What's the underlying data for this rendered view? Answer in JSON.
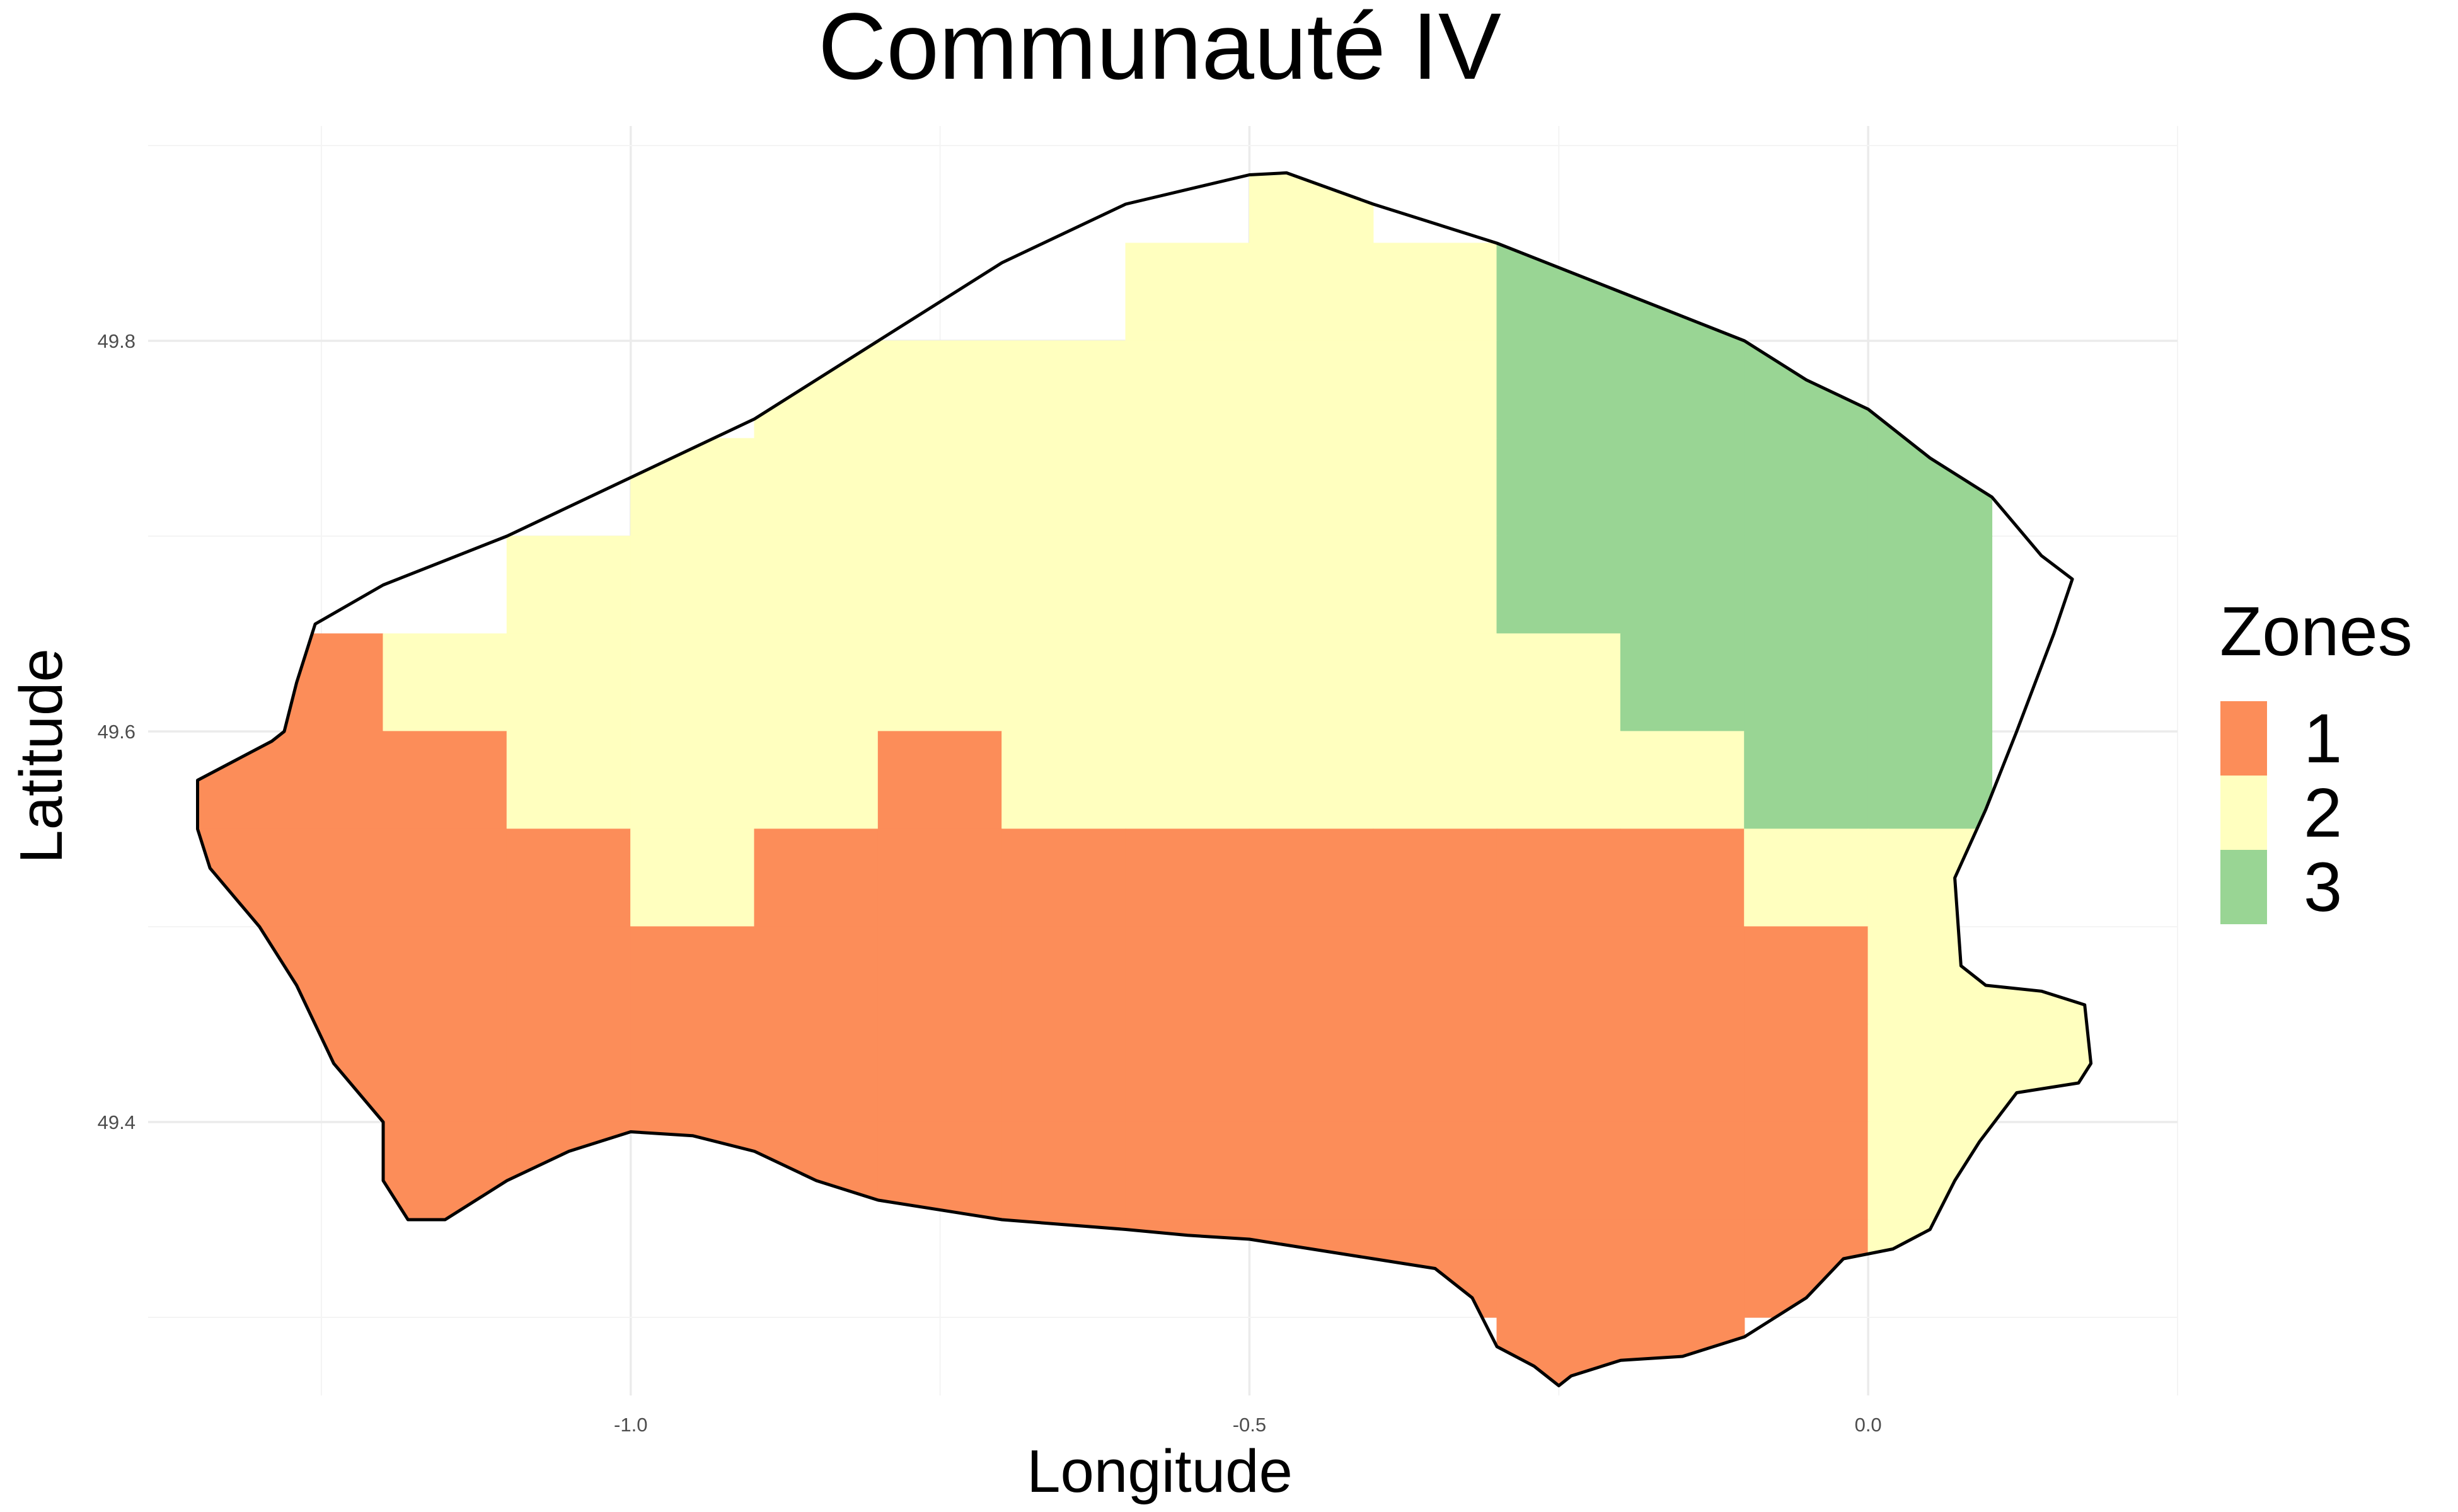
{
  "chart_data": {
    "type": "map",
    "title": "Communauté IV",
    "xlabel": "Longitude",
    "ylabel": "Latitude",
    "x_ticks": [
      -1.0,
      -0.5,
      0.0
    ],
    "x_tick_labels": [
      "-1.0",
      "-0.5",
      "0.0"
    ],
    "y_ticks": [
      49.4,
      49.6,
      49.8
    ],
    "y_tick_labels": [
      "49.4",
      "49.6",
      "49.8"
    ],
    "xlim": [
      -1.39,
      0.25
    ],
    "ylim": [
      49.26,
      49.91
    ],
    "grid": true,
    "legend": {
      "title": "Zones",
      "position": "right",
      "entries": [
        {
          "label": "1",
          "zone": 1,
          "color": "#FC8D59"
        },
        {
          "label": "2",
          "zone": 2,
          "color": "#FFFFBF"
        },
        {
          "label": "3",
          "zone": 3,
          "color": "#99D594"
        }
      ]
    },
    "cell_width_deg": 0.1,
    "cell_height_deg": 0.05,
    "cells": [
      {
        "x": -0.45,
        "y": 49.875,
        "zone": 2
      },
      {
        "x": -0.55,
        "y": 49.825,
        "zone": 2
      },
      {
        "x": -0.45,
        "y": 49.825,
        "zone": 2
      },
      {
        "x": -0.35,
        "y": 49.825,
        "zone": 2
      },
      {
        "x": -0.25,
        "y": 49.825,
        "zone": 3
      },
      {
        "x": -0.15,
        "y": 49.825,
        "zone": 3
      },
      {
        "x": -0.85,
        "y": 49.775,
        "zone": 2
      },
      {
        "x": -0.75,
        "y": 49.775,
        "zone": 2
      },
      {
        "x": -0.65,
        "y": 49.775,
        "zone": 2
      },
      {
        "x": -0.55,
        "y": 49.775,
        "zone": 2
      },
      {
        "x": -0.45,
        "y": 49.775,
        "zone": 2
      },
      {
        "x": -0.35,
        "y": 49.775,
        "zone": 2
      },
      {
        "x": -0.25,
        "y": 49.775,
        "zone": 3
      },
      {
        "x": -0.15,
        "y": 49.775,
        "zone": 3
      },
      {
        "x": -0.05,
        "y": 49.775,
        "zone": 3
      },
      {
        "x": 0.05,
        "y": 49.775,
        "zone": 3
      },
      {
        "x": -0.95,
        "y": 49.725,
        "zone": 2
      },
      {
        "x": -0.85,
        "y": 49.725,
        "zone": 2
      },
      {
        "x": -0.75,
        "y": 49.725,
        "zone": 2
      },
      {
        "x": -0.65,
        "y": 49.725,
        "zone": 2
      },
      {
        "x": -0.55,
        "y": 49.725,
        "zone": 2
      },
      {
        "x": -0.45,
        "y": 49.725,
        "zone": 2
      },
      {
        "x": -0.35,
        "y": 49.725,
        "zone": 2
      },
      {
        "x": -0.25,
        "y": 49.725,
        "zone": 3
      },
      {
        "x": -0.15,
        "y": 49.725,
        "zone": 3
      },
      {
        "x": -0.05,
        "y": 49.725,
        "zone": 3
      },
      {
        "x": 0.05,
        "y": 49.725,
        "zone": 3
      },
      {
        "x": -1.05,
        "y": 49.675,
        "zone": 2
      },
      {
        "x": -0.95,
        "y": 49.675,
        "zone": 2
      },
      {
        "x": -0.85,
        "y": 49.675,
        "zone": 2
      },
      {
        "x": -0.75,
        "y": 49.675,
        "zone": 2
      },
      {
        "x": -0.65,
        "y": 49.675,
        "zone": 2
      },
      {
        "x": -0.55,
        "y": 49.675,
        "zone": 2
      },
      {
        "x": -0.45,
        "y": 49.675,
        "zone": 2
      },
      {
        "x": -0.35,
        "y": 49.675,
        "zone": 2
      },
      {
        "x": -0.25,
        "y": 49.675,
        "zone": 3
      },
      {
        "x": -0.15,
        "y": 49.675,
        "zone": 3
      },
      {
        "x": -0.05,
        "y": 49.675,
        "zone": 3
      },
      {
        "x": 0.05,
        "y": 49.675,
        "zone": 3
      },
      {
        "x": -1.25,
        "y": 49.625,
        "zone": 1
      },
      {
        "x": -1.15,
        "y": 49.625,
        "zone": 2
      },
      {
        "x": -1.05,
        "y": 49.625,
        "zone": 2
      },
      {
        "x": -0.95,
        "y": 49.625,
        "zone": 2
      },
      {
        "x": -0.85,
        "y": 49.625,
        "zone": 2
      },
      {
        "x": -0.75,
        "y": 49.625,
        "zone": 2
      },
      {
        "x": -0.65,
        "y": 49.625,
        "zone": 2
      },
      {
        "x": -0.55,
        "y": 49.625,
        "zone": 2
      },
      {
        "x": -0.45,
        "y": 49.625,
        "zone": 2
      },
      {
        "x": -0.35,
        "y": 49.625,
        "zone": 2
      },
      {
        "x": -0.25,
        "y": 49.625,
        "zone": 2
      },
      {
        "x": -0.15,
        "y": 49.625,
        "zone": 3
      },
      {
        "x": -0.05,
        "y": 49.625,
        "zone": 3
      },
      {
        "x": 0.05,
        "y": 49.625,
        "zone": 3
      },
      {
        "x": -1.35,
        "y": 49.575,
        "zone": 1
      },
      {
        "x": -1.25,
        "y": 49.575,
        "zone": 1
      },
      {
        "x": -1.15,
        "y": 49.575,
        "zone": 1
      },
      {
        "x": -1.05,
        "y": 49.575,
        "zone": 2
      },
      {
        "x": -0.95,
        "y": 49.575,
        "zone": 2
      },
      {
        "x": -0.85,
        "y": 49.575,
        "zone": 2
      },
      {
        "x": -0.75,
        "y": 49.575,
        "zone": 1
      },
      {
        "x": -0.65,
        "y": 49.575,
        "zone": 2
      },
      {
        "x": -0.55,
        "y": 49.575,
        "zone": 2
      },
      {
        "x": -0.45,
        "y": 49.575,
        "zone": 2
      },
      {
        "x": -0.35,
        "y": 49.575,
        "zone": 2
      },
      {
        "x": -0.25,
        "y": 49.575,
        "zone": 2
      },
      {
        "x": -0.15,
        "y": 49.575,
        "zone": 2
      },
      {
        "x": -0.05,
        "y": 49.575,
        "zone": 3
      },
      {
        "x": 0.05,
        "y": 49.575,
        "zone": 3
      },
      {
        "x": -1.35,
        "y": 49.525,
        "zone": 1
      },
      {
        "x": -1.25,
        "y": 49.525,
        "zone": 1
      },
      {
        "x": -1.15,
        "y": 49.525,
        "zone": 1
      },
      {
        "x": -1.05,
        "y": 49.525,
        "zone": 1
      },
      {
        "x": -0.95,
        "y": 49.525,
        "zone": 2
      },
      {
        "x": -0.85,
        "y": 49.525,
        "zone": 1
      },
      {
        "x": -0.75,
        "y": 49.525,
        "zone": 1
      },
      {
        "x": -0.65,
        "y": 49.525,
        "zone": 1
      },
      {
        "x": -0.55,
        "y": 49.525,
        "zone": 1
      },
      {
        "x": -0.45,
        "y": 49.525,
        "zone": 1
      },
      {
        "x": -0.35,
        "y": 49.525,
        "zone": 1
      },
      {
        "x": -0.25,
        "y": 49.525,
        "zone": 1
      },
      {
        "x": -0.15,
        "y": 49.525,
        "zone": 1
      },
      {
        "x": -0.05,
        "y": 49.525,
        "zone": 2
      },
      {
        "x": 0.05,
        "y": 49.525,
        "zone": 2
      },
      {
        "x": -1.25,
        "y": 49.475,
        "zone": 1
      },
      {
        "x": -1.15,
        "y": 49.475,
        "zone": 1
      },
      {
        "x": -1.05,
        "y": 49.475,
        "zone": 1
      },
      {
        "x": -0.95,
        "y": 49.475,
        "zone": 1
      },
      {
        "x": -0.85,
        "y": 49.475,
        "zone": 1
      },
      {
        "x": -0.75,
        "y": 49.475,
        "zone": 1
      },
      {
        "x": -0.65,
        "y": 49.475,
        "zone": 1
      },
      {
        "x": -0.55,
        "y": 49.475,
        "zone": 1
      },
      {
        "x": -0.45,
        "y": 49.475,
        "zone": 1
      },
      {
        "x": -0.35,
        "y": 49.475,
        "zone": 1
      },
      {
        "x": -0.25,
        "y": 49.475,
        "zone": 1
      },
      {
        "x": -0.15,
        "y": 49.475,
        "zone": 1
      },
      {
        "x": -0.05,
        "y": 49.475,
        "zone": 1
      },
      {
        "x": 0.05,
        "y": 49.475,
        "zone": 2
      },
      {
        "x": 0.15,
        "y": 49.475,
        "zone": 2
      },
      {
        "x": -1.25,
        "y": 49.425,
        "zone": 1
      },
      {
        "x": -1.15,
        "y": 49.425,
        "zone": 1
      },
      {
        "x": -1.05,
        "y": 49.425,
        "zone": 1
      },
      {
        "x": -0.95,
        "y": 49.425,
        "zone": 1
      },
      {
        "x": -0.85,
        "y": 49.425,
        "zone": 1
      },
      {
        "x": -0.75,
        "y": 49.425,
        "zone": 1
      },
      {
        "x": -0.65,
        "y": 49.425,
        "zone": 1
      },
      {
        "x": -0.55,
        "y": 49.425,
        "zone": 1
      },
      {
        "x": -0.45,
        "y": 49.425,
        "zone": 1
      },
      {
        "x": -0.35,
        "y": 49.425,
        "zone": 1
      },
      {
        "x": -0.25,
        "y": 49.425,
        "zone": 1
      },
      {
        "x": -0.15,
        "y": 49.425,
        "zone": 1
      },
      {
        "x": -0.05,
        "y": 49.425,
        "zone": 1
      },
      {
        "x": 0.05,
        "y": 49.425,
        "zone": 2
      },
      {
        "x": 0.15,
        "y": 49.425,
        "zone": 2
      },
      {
        "x": -1.15,
        "y": 49.375,
        "zone": 1
      },
      {
        "x": -1.05,
        "y": 49.375,
        "zone": 1
      },
      {
        "x": -0.95,
        "y": 49.375,
        "zone": 1
      },
      {
        "x": -0.85,
        "y": 49.375,
        "zone": 1
      },
      {
        "x": -0.75,
        "y": 49.375,
        "zone": 1
      },
      {
        "x": -0.65,
        "y": 49.375,
        "zone": 1
      },
      {
        "x": -0.55,
        "y": 49.375,
        "zone": 1
      },
      {
        "x": -0.45,
        "y": 49.375,
        "zone": 1
      },
      {
        "x": -0.35,
        "y": 49.375,
        "zone": 1
      },
      {
        "x": -0.25,
        "y": 49.375,
        "zone": 1
      },
      {
        "x": -0.15,
        "y": 49.375,
        "zone": 1
      },
      {
        "x": -0.05,
        "y": 49.375,
        "zone": 1
      },
      {
        "x": 0.05,
        "y": 49.375,
        "zone": 2
      },
      {
        "x": -0.75,
        "y": 49.325,
        "zone": 1
      },
      {
        "x": -0.65,
        "y": 49.325,
        "zone": 1
      },
      {
        "x": -0.55,
        "y": 49.325,
        "zone": 1
      },
      {
        "x": -0.45,
        "y": 49.325,
        "zone": 1
      },
      {
        "x": -0.35,
        "y": 49.325,
        "zone": 1
      },
      {
        "x": -0.25,
        "y": 49.325,
        "zone": 1
      },
      {
        "x": -0.15,
        "y": 49.325,
        "zone": 1
      },
      {
        "x": -0.05,
        "y": 49.325,
        "zone": 1
      },
      {
        "x": 0.05,
        "y": 49.325,
        "zone": 2
      },
      {
        "x": -0.25,
        "y": 49.275,
        "zone": 1
      },
      {
        "x": -0.15,
        "y": 49.275,
        "zone": 1
      }
    ],
    "coastline": [
      [
        -1.255,
        49.655
      ],
      [
        -1.2,
        49.675
      ],
      [
        -1.1,
        49.7
      ],
      [
        -1.0,
        49.73
      ],
      [
        -0.9,
        49.76
      ],
      [
        -0.8,
        49.8
      ],
      [
        -0.7,
        49.84
      ],
      [
        -0.6,
        49.87
      ],
      [
        -0.5,
        49.885
      ],
      [
        -0.47,
        49.886
      ],
      [
        -0.4,
        49.87
      ],
      [
        -0.3,
        49.85
      ],
      [
        -0.2,
        49.825
      ],
      [
        -0.1,
        49.8
      ],
      [
        -0.05,
        49.78
      ],
      [
        0.0,
        49.765
      ],
      [
        0.05,
        49.74
      ],
      [
        0.1,
        49.72
      ],
      [
        0.14,
        49.69
      ],
      [
        0.165,
        49.678
      ],
      [
        0.15,
        49.65
      ],
      [
        0.12,
        49.6
      ],
      [
        0.095,
        49.56
      ],
      [
        0.07,
        49.525
      ],
      [
        0.075,
        49.48
      ],
      [
        0.095,
        49.47
      ],
      [
        0.14,
        49.467
      ],
      [
        0.175,
        49.46
      ],
      [
        0.18,
        49.43
      ],
      [
        0.17,
        49.42
      ],
      [
        0.12,
        49.415
      ],
      [
        0.09,
        49.39
      ],
      [
        0.07,
        49.37
      ],
      [
        0.05,
        49.345
      ],
      [
        0.02,
        49.335
      ],
      [
        -0.02,
        49.33
      ],
      [
        -0.05,
        49.31
      ],
      [
        -0.1,
        49.29
      ],
      [
        -0.15,
        49.28
      ],
      [
        -0.2,
        49.278
      ],
      [
        -0.24,
        49.27
      ],
      [
        -0.25,
        49.265
      ],
      [
        -0.27,
        49.275
      ],
      [
        -0.3,
        49.285
      ],
      [
        -0.32,
        49.31
      ],
      [
        -0.35,
        49.325
      ],
      [
        -0.4,
        49.33
      ],
      [
        -0.5,
        49.34
      ],
      [
        -0.55,
        49.342
      ],
      [
        -0.6,
        49.345
      ],
      [
        -0.7,
        49.35
      ],
      [
        -0.8,
        49.36
      ],
      [
        -0.85,
        49.37
      ],
      [
        -0.9,
        49.385
      ],
      [
        -0.95,
        49.393
      ],
      [
        -1.0,
        49.395
      ],
      [
        -1.05,
        49.385
      ],
      [
        -1.1,
        49.37
      ],
      [
        -1.125,
        49.36
      ],
      [
        -1.15,
        49.35
      ],
      [
        -1.18,
        49.35
      ],
      [
        -1.2,
        49.37
      ],
      [
        -1.2,
        49.4
      ],
      [
        -1.24,
        49.43
      ],
      [
        -1.27,
        49.47
      ],
      [
        -1.3,
        49.5
      ],
      [
        -1.34,
        49.53
      ],
      [
        -1.35,
        49.55
      ],
      [
        -1.35,
        49.575
      ],
      [
        -1.32,
        49.585
      ],
      [
        -1.29,
        49.595
      ],
      [
        -1.28,
        49.6
      ],
      [
        -1.27,
        49.625
      ],
      [
        -1.255,
        49.655
      ]
    ]
  }
}
